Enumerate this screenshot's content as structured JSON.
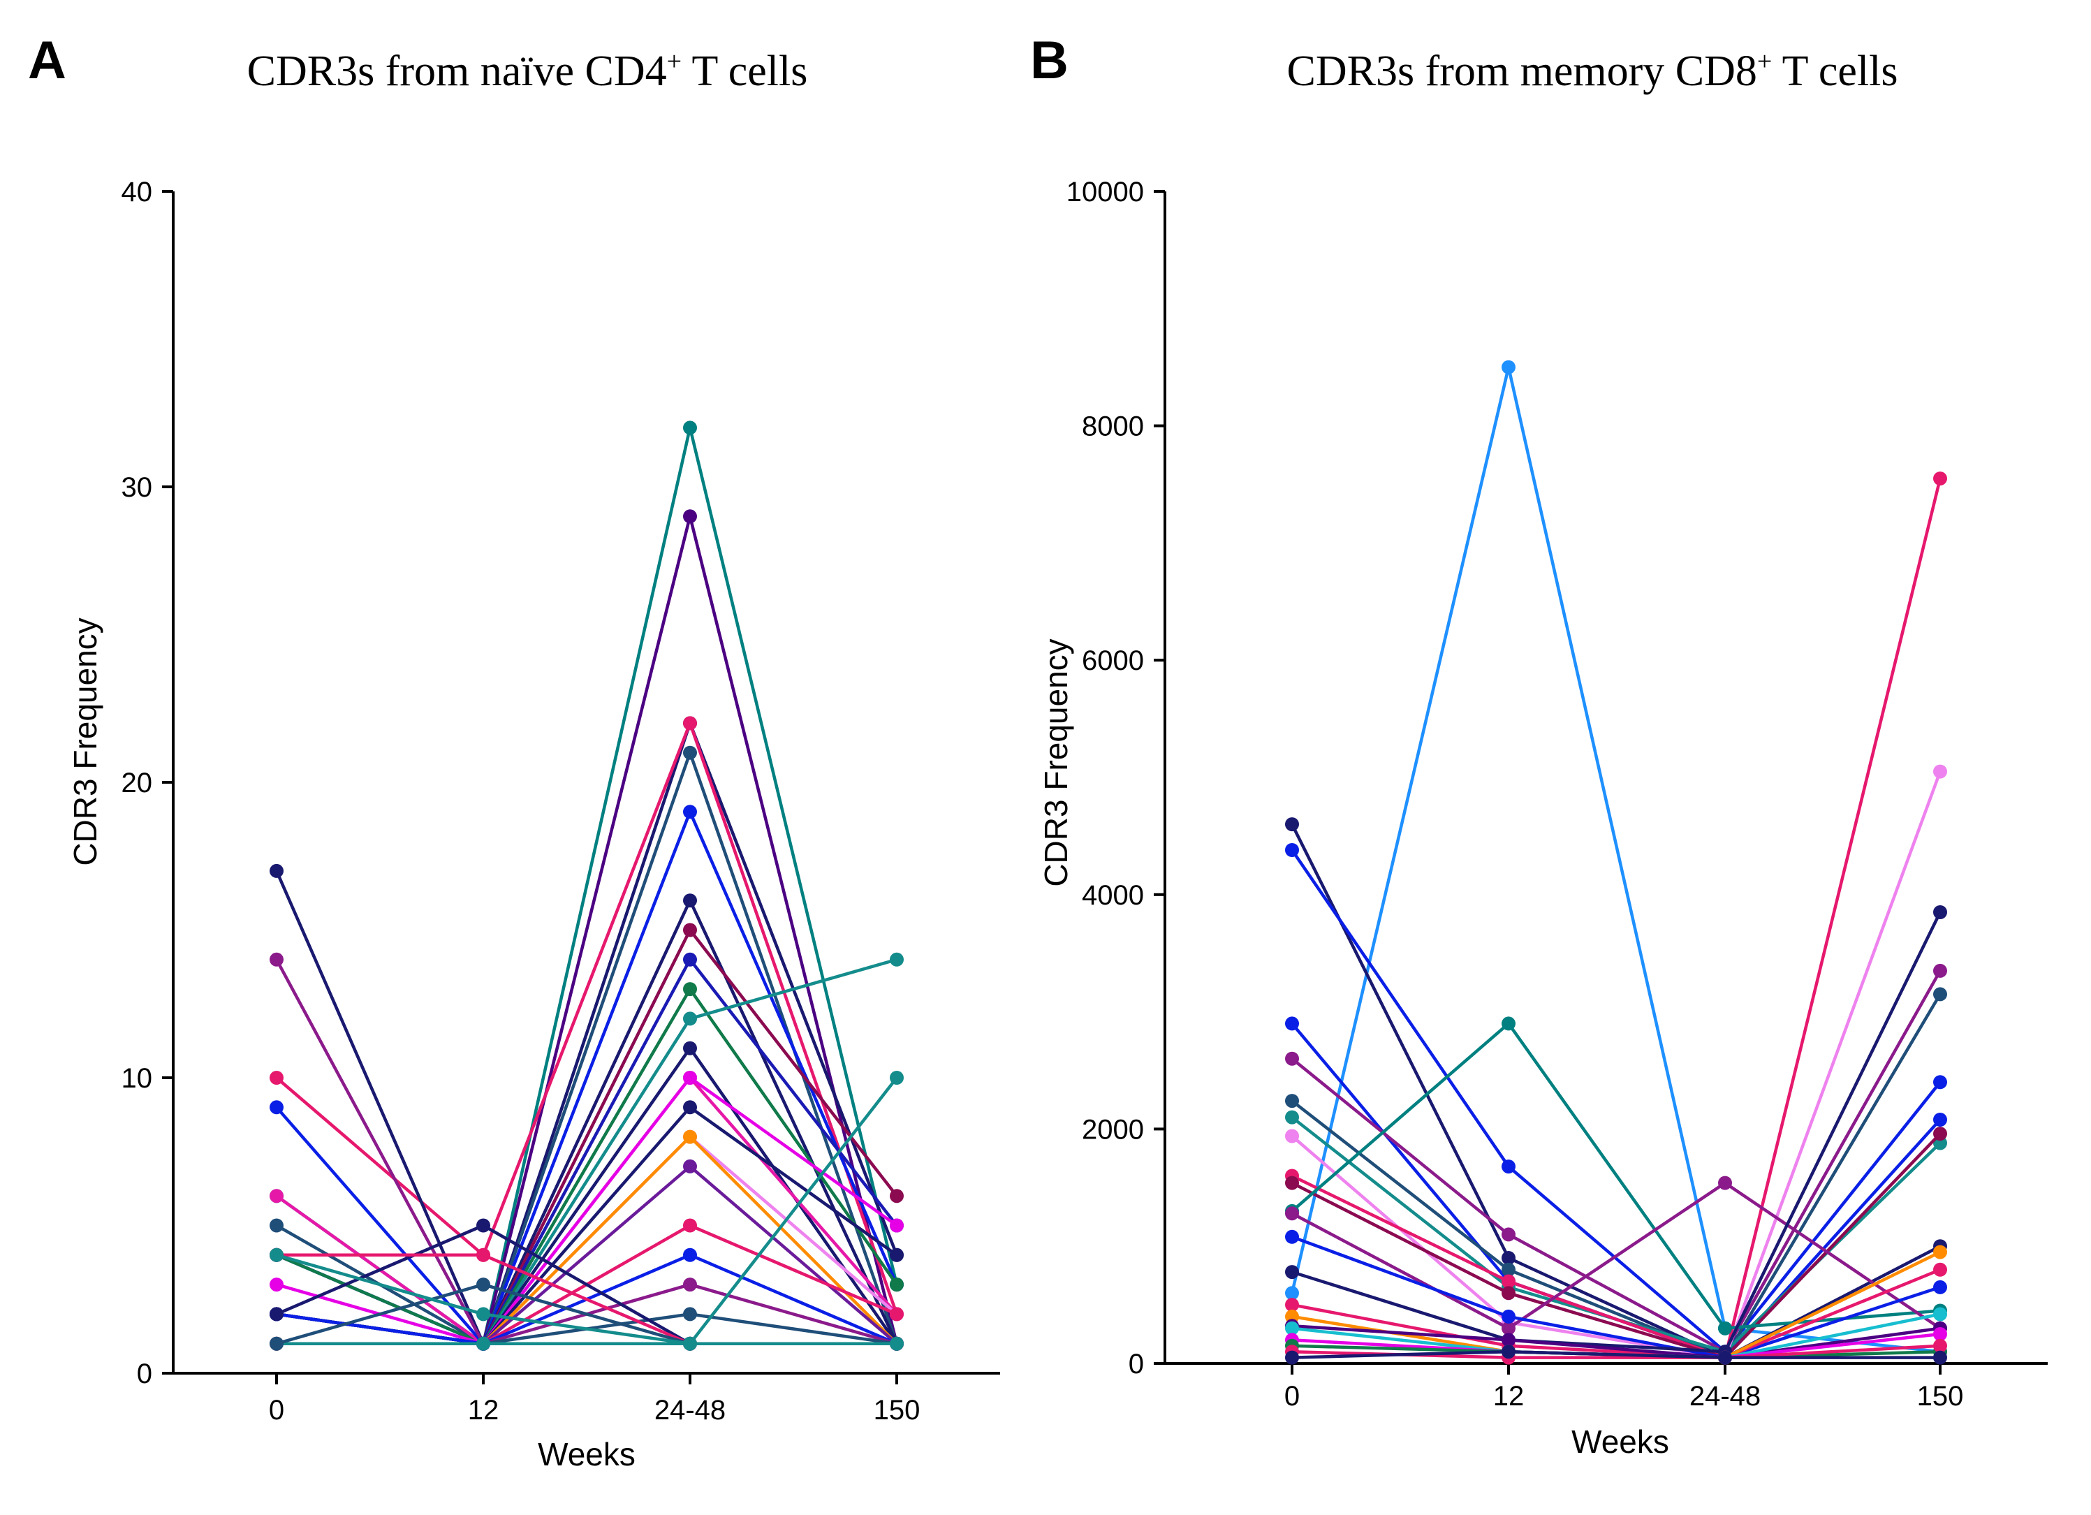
{
  "chart_data": [
    {
      "type": "line",
      "panel_label": "A",
      "title": "CDR3s from naïve CD4",
      "title_superscript": "+",
      "title_suffix": " T cells",
      "xlabel": "Weeks",
      "ylabel": "CDR3 Frequency",
      "categories": [
        "0",
        "12",
        "24-48",
        "150"
      ],
      "ylim": [
        0,
        40
      ],
      "yticks": [
        0,
        10,
        20,
        30,
        40
      ],
      "grid": false,
      "series": [
        {
          "color": "#008080",
          "values": [
            6,
            1,
            32,
            3
          ]
        },
        {
          "color": "#4B0082",
          "values": [
            2,
            1,
            29,
            1
          ]
        },
        {
          "color": "#191970",
          "values": [
            2,
            1,
            22,
            4
          ]
        },
        {
          "color": "#E6186D",
          "values": [
            10,
            4,
            22,
            2
          ]
        },
        {
          "color": "#1F4E79",
          "values": [
            5,
            1,
            21,
            1
          ]
        },
        {
          "color": "#0A1FE6",
          "values": [
            4,
            1,
            19,
            3
          ]
        },
        {
          "color": "#191970",
          "values": [
            17,
            1,
            16,
            1
          ]
        },
        {
          "color": "#8B0A50",
          "values": [
            2,
            1,
            15,
            6
          ]
        },
        {
          "color": "#1A1AB4",
          "values": [
            4,
            1,
            14,
            5
          ]
        },
        {
          "color": "#107A4A",
          "values": [
            4,
            1,
            13,
            3
          ]
        },
        {
          "color": "#148C8C",
          "values": [
            2,
            1,
            12,
            14
          ]
        },
        {
          "color": "#191970",
          "values": [
            2,
            1,
            11,
            1
          ]
        },
        {
          "color": "#E618A8",
          "values": [
            6,
            1,
            10,
            2
          ]
        },
        {
          "color": "#E600E6",
          "values": [
            3,
            1,
            10,
            5
          ]
        },
        {
          "color": "#191970",
          "values": [
            1,
            1,
            9,
            4
          ]
        },
        {
          "color": "#EE82EE",
          "values": [
            1,
            1,
            8,
            2
          ]
        },
        {
          "color": "#FF8C00",
          "values": [
            1,
            1,
            8,
            1
          ]
        },
        {
          "color": "#6A1B9A",
          "values": [
            2,
            1,
            7,
            1
          ]
        },
        {
          "color": "#E6186D",
          "values": [
            1,
            1,
            5,
            2
          ]
        },
        {
          "color": "#0A1FE6",
          "values": [
            9,
            1,
            4,
            1
          ]
        },
        {
          "color": "#8B1A8B",
          "values": [
            14,
            1,
            3,
            1
          ]
        },
        {
          "color": "#1F4E79",
          "values": [
            2,
            1,
            2,
            1
          ]
        },
        {
          "color": "#0A1FE6",
          "values": [
            2,
            1,
            1,
            1
          ]
        },
        {
          "color": "#148C8C",
          "values": [
            1,
            1,
            1,
            10
          ]
        },
        {
          "color": "#191970",
          "values": [
            2,
            5,
            1,
            1
          ]
        },
        {
          "color": "#E6186D",
          "values": [
            4,
            4,
            1,
            1
          ]
        },
        {
          "color": "#1F4E79",
          "values": [
            1,
            3,
            1,
            1
          ]
        },
        {
          "color": "#148C8C",
          "values": [
            4,
            2,
            1,
            1
          ]
        }
      ]
    },
    {
      "type": "line",
      "panel_label": "B",
      "title": "CDR3s from memory CD8",
      "title_superscript": "+",
      "title_suffix": " T cells",
      "xlabel": "Weeks",
      "ylabel": "CDR3 Frequency",
      "categories": [
        "0",
        "12",
        "24-48",
        "150"
      ],
      "ylim": [
        0,
        10000
      ],
      "yticks": [
        0,
        2000,
        4000,
        6000,
        8000,
        10000
      ],
      "grid": false,
      "series": [
        {
          "color": "#1E90FF",
          "values": [
            600,
            8500,
            300,
            100
          ]
        },
        {
          "color": "#191970",
          "values": [
            4600,
            900,
            50,
            1000
          ]
        },
        {
          "color": "#0A1FE6",
          "values": [
            4380,
            1680,
            100,
            2400
          ]
        },
        {
          "color": "#0A1FE6",
          "values": [
            2900,
            700,
            50,
            2080
          ]
        },
        {
          "color": "#8B1A8B",
          "values": [
            2600,
            1100,
            100,
            3350
          ]
        },
        {
          "color": "#1F4E79",
          "values": [
            2240,
            800,
            50,
            3150
          ]
        },
        {
          "color": "#148C8C",
          "values": [
            2100,
            650,
            100,
            1880
          ]
        },
        {
          "color": "#EE82EE",
          "values": [
            1940,
            350,
            50,
            5050
          ]
        },
        {
          "color": "#E6186D",
          "values": [
            1600,
            700,
            50,
            7550
          ]
        },
        {
          "color": "#8B0A50",
          "values": [
            1540,
            600,
            50,
            1960
          ]
        },
        {
          "color": "#008080",
          "values": [
            1300,
            2900,
            300,
            450
          ]
        },
        {
          "color": "#8B1A8B",
          "values": [
            1280,
            300,
            1540,
            300
          ]
        },
        {
          "color": "#0A1FE6",
          "values": [
            1080,
            400,
            50,
            650
          ]
        },
        {
          "color": "#191970",
          "values": [
            780,
            200,
            100,
            3850
          ]
        },
        {
          "color": "#E6186D",
          "values": [
            500,
            150,
            50,
            800
          ]
        },
        {
          "color": "#FF8C00",
          "values": [
            400,
            100,
            50,
            950
          ]
        },
        {
          "color": "#4B0082",
          "values": [
            320,
            200,
            50,
            300
          ]
        },
        {
          "color": "#17BECF",
          "values": [
            300,
            100,
            50,
            420
          ]
        },
        {
          "color": "#E600E6",
          "values": [
            200,
            100,
            50,
            250
          ]
        },
        {
          "color": "#107A4A",
          "values": [
            150,
            100,
            50,
            100
          ]
        },
        {
          "color": "#E6186D",
          "values": [
            100,
            50,
            50,
            150
          ]
        },
        {
          "color": "#191970",
          "values": [
            50,
            100,
            50,
            50
          ]
        }
      ]
    }
  ]
}
